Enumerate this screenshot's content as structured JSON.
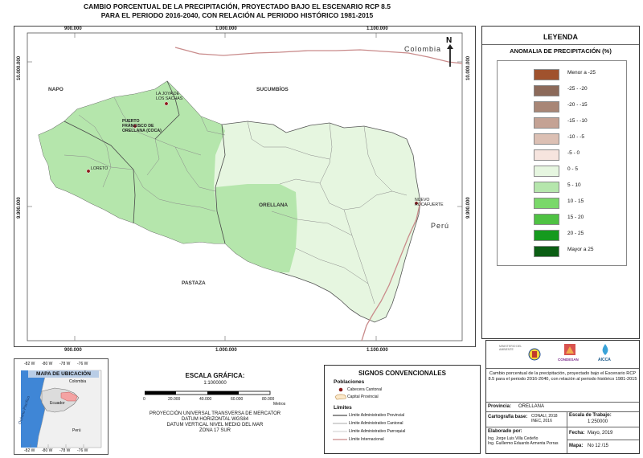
{
  "title_lines": [
    "CAMBIO PORCENTUAL DE LA PRECIPITACIÓN, PROYECTADO BAJO EL ESCENARIO RCP 8.5",
    "PARA EL PERIODO 2016-2040, CON RELACIÓN AL PERIODO HISTÓRICO 1981-2015"
  ],
  "map": {
    "x_ticks": [
      "900.000",
      "1.000.000",
      "1.100.000"
    ],
    "y_ticks": [
      "10.000.000",
      "9.900.000"
    ],
    "north_symbol": "N",
    "labels": {
      "colombia": "Colombia",
      "napo": "NAPO",
      "sucumbios": "SUCUMBÍOS",
      "orellana": "ORELLANA",
      "pastaza": "PASTAZA",
      "peru": "Perú"
    },
    "towns": [
      {
        "name": "LA JOYA DE\nLOS SACHAS"
      },
      {
        "name": "PUERTO\nFRANCISCO DE\nORELLANA (COCA)"
      },
      {
        "name": "LORETO"
      },
      {
        "name": "NUEVO\nROCAFUERTE"
      }
    ]
  },
  "legend": {
    "heading": "LEYENDA",
    "subheading": "ANOMALIA DE PRECIPITACIÓN (%)",
    "classes": [
      {
        "label": "Menor a -25",
        "color": "#a0522d"
      },
      {
        "label": "-25 - -20",
        "color": "#8c6a5a"
      },
      {
        "label": "-20 - -15",
        "color": "#a88676"
      },
      {
        "label": "-15 - -10",
        "color": "#c4a294"
      },
      {
        "label": "-10 - -5",
        "color": "#dcc0b4"
      },
      {
        "label": "-5 - 0",
        "color": "#f6e4de"
      },
      {
        "label": "0 - 5",
        "color": "#e6f6e0"
      },
      {
        "label": "5 - 10",
        "color": "#b5e6ac"
      },
      {
        "label": "10 - 15",
        "color": "#7ad86a"
      },
      {
        "label": "15 - 20",
        "color": "#4fc243"
      },
      {
        "label": "20 - 25",
        "color": "#159a1e"
      },
      {
        "label": "Mayor a 25",
        "color": "#0b5e14"
      }
    ]
  },
  "logos": {
    "ministerio": "MINISTERIO DEL AMBIENTE",
    "condesan": "CONDESAN",
    "aicca": "AICCA"
  },
  "info": {
    "description": "Cambio porcentual de la precipitación, proyectado bajo el Escenario RCP 8.5 para el periodo 2016-2040, con relación al periodo histórico 1981-2015",
    "provincia_label": "Provincia:",
    "provincia_value": "ORELLANA",
    "cartografia_label": "Cartografía base:",
    "cartografia_value": "CONALI, 2018 INEC, 2016",
    "escala_label": "Escala de Trabajo:",
    "escala_value": "1:250000",
    "elaborado_label": "Elaborado por:",
    "elaborado_value_1": "Ing. Jorge Luis Villa Cedeño",
    "elaborado_value_2": "Ing. Guillermo Eduardo Armenta Porras",
    "fecha_label": "Fecha:",
    "fecha_value": "Mayo, 2019",
    "mapa_label": "Mapa:",
    "mapa_value": "No 12 /15"
  },
  "inset": {
    "title": "MAPA DE UBICACIÓN",
    "ocean": "Océano Pacífico",
    "colombia": "Colombia",
    "ecuador": "Ecuador",
    "peru": "Perú",
    "top_ticks": [
      "-82 W",
      "-80 W",
      "-78 W",
      "-76 W"
    ],
    "bottom_ticks": [
      "-82 W",
      "-80 W",
      "-78 W",
      "-76 W"
    ]
  },
  "scale": {
    "heading": "ESCALA GRÁFICA:",
    "ratio": "1:1000000",
    "ticks": [
      "0",
      "20.000",
      "40.000",
      "60.000",
      "80.000"
    ],
    "unit": "Metros",
    "projection_lines": [
      "PROYECCIÓN UNIVERSAL TRANSVERSA DE MERCATOR",
      "DATUM HORIZONTAL WGS84",
      "DATUM VERTICAL NIVEL MEDIO DEL MAR",
      "ZONA 17 SUR"
    ]
  },
  "signs": {
    "heading": "SIGNOS CONVENCIONALES",
    "poblaciones_heading": "Poblaciones",
    "cabecera": "Cabecera Cantonal",
    "capital": "Capital Provincial",
    "limites_heading": "Límites",
    "lim_provincial": "Límite Administrativo Provincial",
    "lim_cantonal": "Límite Administrativo Cantonal",
    "lim_parroquial": "Límite Administrativo Parroquial",
    "lim_internacional": "Límite Internacional"
  }
}
